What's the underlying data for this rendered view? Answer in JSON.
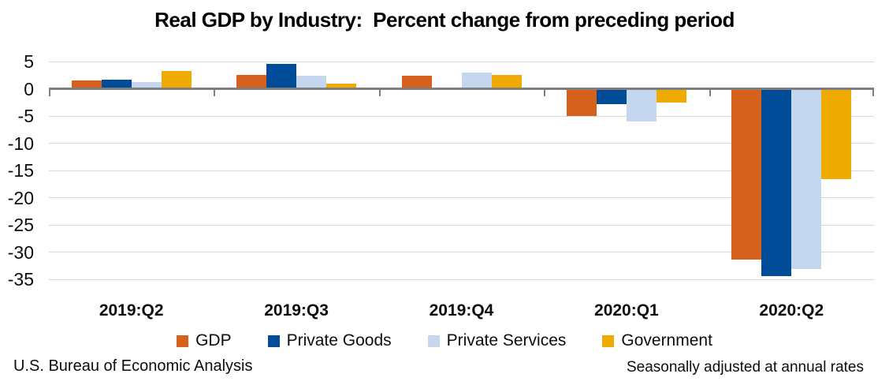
{
  "title": "Real GDP by Industry:  Percent change from preceding period",
  "y_axis": {
    "ticks": [
      5,
      0,
      -5,
      -10,
      -15,
      -20,
      -25,
      -30,
      -35
    ],
    "min": -35,
    "max": 5
  },
  "chart_data": {
    "type": "bar",
    "title": "Real GDP by Industry:  Percent change from preceding period",
    "categories": [
      "2019:Q2",
      "2019:Q3",
      "2019:Q4",
      "2020:Q1",
      "2020:Q2"
    ],
    "series": [
      {
        "name": "GDP",
        "color": "#D6611C",
        "values": [
          1.5,
          2.6,
          2.4,
          -5.0,
          -31.4
        ]
      },
      {
        "name": "Private Goods",
        "color": "#004C98",
        "values": [
          1.7,
          4.5,
          0.0,
          -2.8,
          -34.4
        ]
      },
      {
        "name": "Private Services",
        "color": "#C5D7EE",
        "values": [
          1.2,
          2.4,
          2.9,
          -6.0,
          -33.1
        ]
      },
      {
        "name": "Government",
        "color": "#F0AB00",
        "values": [
          3.2,
          1.0,
          2.6,
          -2.5,
          -16.6
        ]
      }
    ],
    "ylabel": "",
    "xlabel": "",
    "ylim": [
      -35,
      5
    ],
    "grid": true,
    "legend_position": "bottom"
  },
  "colors": {
    "axis": "#7f7f7f",
    "gridline": "#d9d9d9"
  },
  "footer": {
    "left": "U.S. Bureau of Economic Analysis",
    "right": "Seasonally adjusted at annual rates"
  }
}
